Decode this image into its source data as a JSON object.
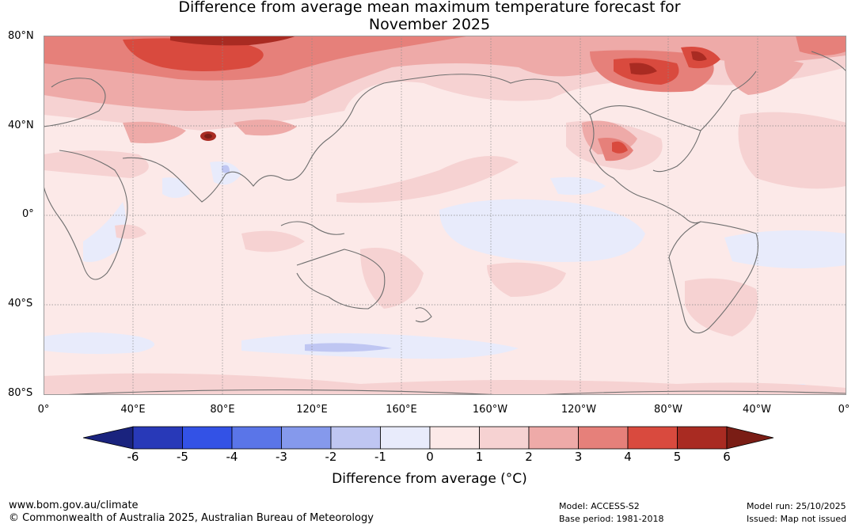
{
  "title_line1": "Difference from average mean maximum temperature forecast for",
  "title_line2": "November 2025",
  "lat_labels": [
    "80°N",
    "40°N",
    "0°",
    "40°S",
    "80°S"
  ],
  "lon_labels": [
    "0°",
    "40°E",
    "80°E",
    "120°E",
    "160°E",
    "160°W",
    "120°W",
    "80°W",
    "40°W",
    "0°"
  ],
  "colorbar": {
    "title": "Difference from average (°C)",
    "ticks": [
      "-6",
      "-5",
      "-4",
      "-3",
      "-2",
      "-1",
      "0",
      "1",
      "2",
      "3",
      "4",
      "5",
      "6"
    ],
    "colors": [
      "#1a237e",
      "#2839b8",
      "#3352e6",
      "#5a75e8",
      "#8599ec",
      "#bfc6f2",
      "#e8ebfb",
      "#fce9e8",
      "#f6d2d2",
      "#eeaaa8",
      "#e6807a",
      "#d94a3e",
      "#a92b22",
      "#7a1d15"
    ]
  },
  "footer": {
    "url": "www.bom.gov.au/climate",
    "copyright": "© Commonwealth of Australia 2025, Australian Bureau of Meteorology",
    "model": "Model: ACCESS-S2",
    "base_period": "Base period: 1981-2018",
    "model_run": "Model run: 25/10/2025",
    "issued": "Issued: Map not issued"
  }
}
